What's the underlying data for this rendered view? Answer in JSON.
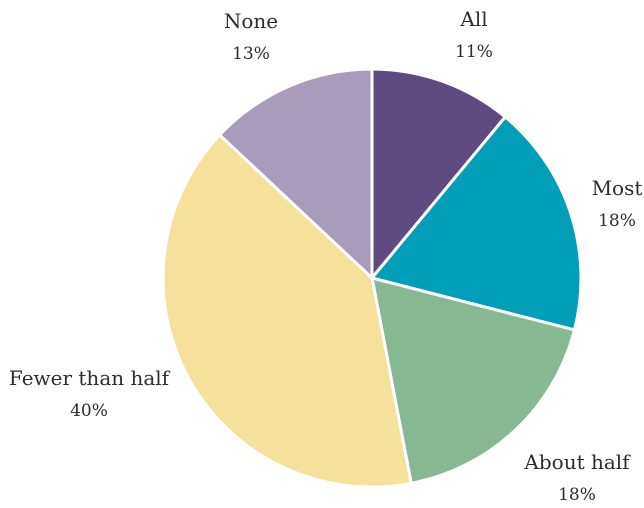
{
  "chart_data": {
    "type": "pie",
    "title": "",
    "slices": [
      {
        "label": "All",
        "value": 11,
        "value_label": "11%",
        "color": "#5f4b82"
      },
      {
        "label": "Most",
        "value": 18,
        "value_label": "18%",
        "color": "#009fb7"
      },
      {
        "label": "About half",
        "value": 18,
        "value_label": "18%",
        "color": "#86b894"
      },
      {
        "label": "Fewer than half",
        "value": 40,
        "value_label": "40%",
        "color": "#f5e19b"
      },
      {
        "label": "None",
        "value": 13,
        "value_label": "13%",
        "color": "#a99cba"
      }
    ],
    "start_angle": "12 o'clock",
    "direction": "clockwise"
  }
}
